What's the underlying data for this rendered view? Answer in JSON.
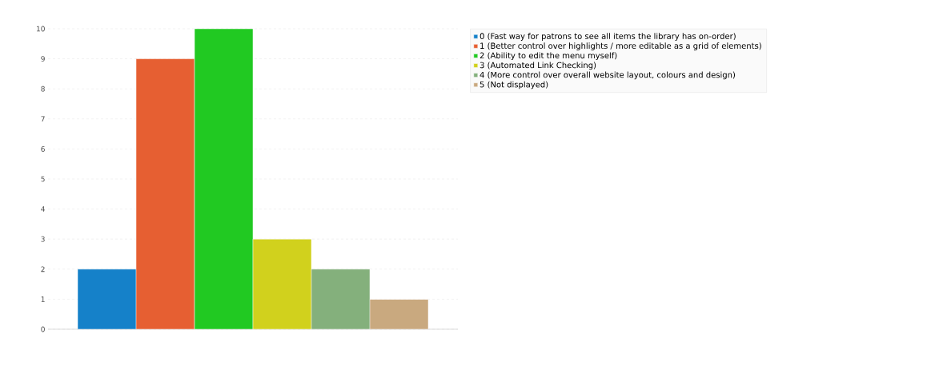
{
  "chart_data": {
    "type": "bar",
    "categories": [
      null
    ],
    "series": [
      {
        "name": "0 (Fast way for patrons to see all items the library has on-order)",
        "color": "#1581c9",
        "values": [
          2
        ]
      },
      {
        "name": "1 (Better control over highlights / more editable as a grid of elements)",
        "color": "#e65f32",
        "values": [
          9
        ]
      },
      {
        "name": "2 (Ability to edit the menu myself)",
        "color": "#21c922",
        "values": [
          10
        ]
      },
      {
        "name": "3 (Automated Link Checking)",
        "color": "#d1d11d",
        "values": [
          3
        ]
      },
      {
        "name": "4 (More control over overall website layout, colours and design)",
        "color": "#84b07c",
        "values": [
          2
        ]
      },
      {
        "name": "5 (Not displayed)",
        "color": "#c9a97f",
        "values": [
          1
        ]
      }
    ],
    "ylim": [
      0,
      10
    ],
    "yticks": [
      0,
      1,
      2,
      3,
      4,
      5,
      6,
      7,
      8,
      9,
      10
    ],
    "grid": "y",
    "legend": "top right"
  }
}
